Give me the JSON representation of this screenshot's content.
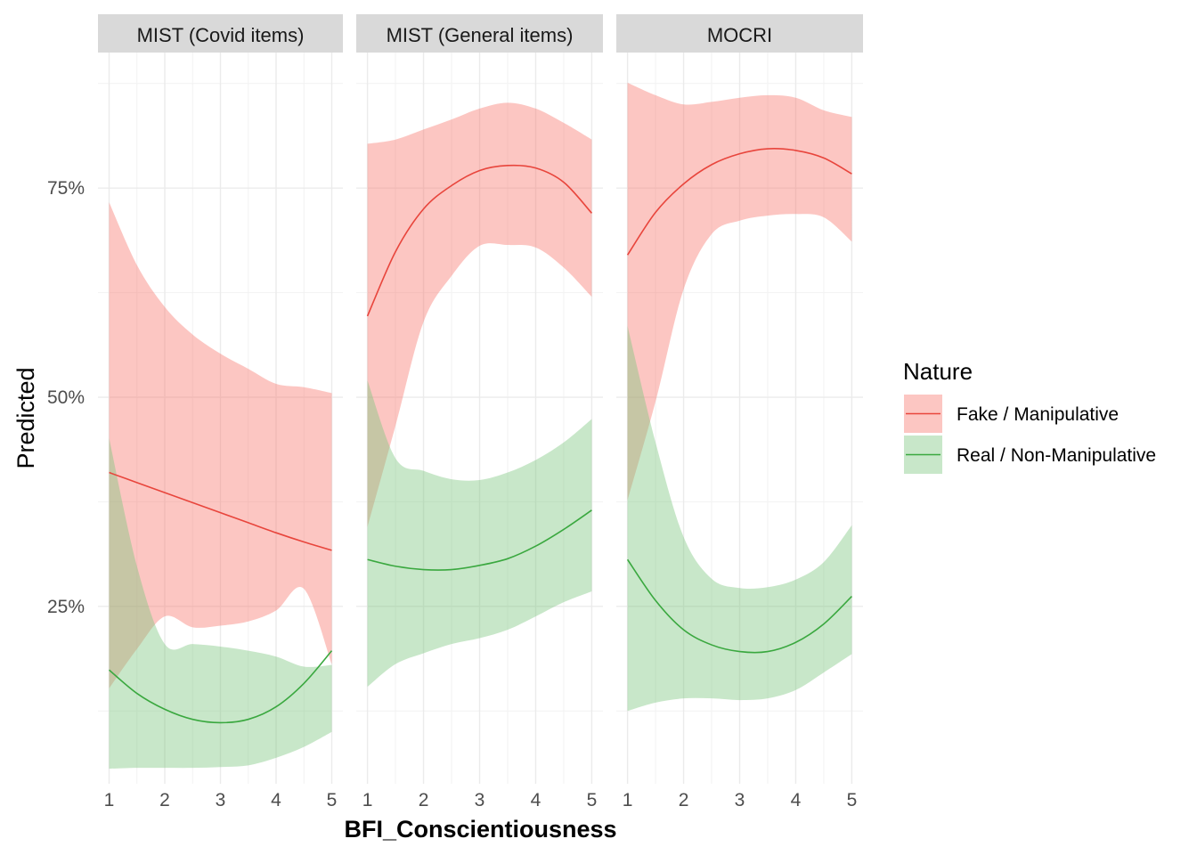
{
  "chart_data": {
    "type": "line",
    "xlabel": "BFI_Conscientiousness",
    "ylabel": "Predicted",
    "x_ticks": [
      1,
      2,
      3,
      4,
      5
    ],
    "y_ticks": [
      {
        "value": 0.25,
        "label": "25%"
      },
      {
        "value": 0.5,
        "label": "50%"
      },
      {
        "value": 0.75,
        "label": "75%"
      }
    ],
    "xlim": [
      0.8,
      5.2
    ],
    "ylim": [
      0.038,
      0.912
    ],
    "legend": {
      "title": "Nature",
      "position": "right",
      "items": [
        {
          "name": "Fake / Manipulative",
          "color": "#e8453c",
          "fill": "#f8766d"
        },
        {
          "name": "Real / Non-Manipulative",
          "color": "#3aa83f",
          "fill": "#7cc67f"
        }
      ]
    },
    "panels": [
      {
        "title": "MIST (Covid items)",
        "x": [
          1,
          1.5,
          2,
          2.5,
          3,
          3.5,
          4,
          4.5,
          5
        ],
        "series": [
          {
            "name": "Fake / Manipulative",
            "values": [
              0.41,
              0.398,
              0.386,
              0.374,
              0.362,
              0.35,
              0.338,
              0.327,
              0.317
            ],
            "lower": [
              0.152,
              0.199,
              0.238,
              0.225,
              0.227,
              0.232,
              0.245,
              0.271,
              0.181
            ],
            "upper": [
              0.733,
              0.658,
              0.608,
              0.575,
              0.552,
              0.534,
              0.516,
              0.512,
              0.505
            ]
          },
          {
            "name": "Real / Non-Manipulative",
            "values": [
              0.174,
              0.146,
              0.127,
              0.115,
              0.111,
              0.115,
              0.13,
              0.158,
              0.197
            ],
            "lower": [
              0.056,
              0.057,
              0.057,
              0.057,
              0.058,
              0.06,
              0.069,
              0.082,
              0.1
            ],
            "upper": [
              0.451,
              0.298,
              0.205,
              0.205,
              0.202,
              0.197,
              0.19,
              0.178,
              0.18
            ]
          }
        ]
      },
      {
        "title": "MIST (General items)",
        "x": [
          1,
          1.5,
          2,
          2.5,
          3,
          3.5,
          4,
          4.5,
          5
        ],
        "series": [
          {
            "name": "Fake / Manipulative",
            "values": [
              0.597,
              0.674,
              0.725,
              0.753,
              0.771,
              0.777,
              0.774,
              0.757,
              0.72
            ],
            "lower": [
              0.345,
              0.466,
              0.59,
              0.645,
              0.681,
              0.682,
              0.679,
              0.655,
              0.62
            ],
            "upper": [
              0.803,
              0.808,
              0.82,
              0.832,
              0.845,
              0.852,
              0.845,
              0.828,
              0.808
            ]
          },
          {
            "name": "Real / Non-Manipulative",
            "values": [
              0.306,
              0.298,
              0.294,
              0.294,
              0.299,
              0.307,
              0.322,
              0.342,
              0.365
            ],
            "lower": [
              0.154,
              0.181,
              0.194,
              0.205,
              0.212,
              0.222,
              0.238,
              0.255,
              0.268
            ],
            "upper": [
              0.52,
              0.427,
              0.412,
              0.402,
              0.401,
              0.41,
              0.425,
              0.446,
              0.474
            ]
          }
        ]
      },
      {
        "title": "MOCRI",
        "x": [
          1,
          1.5,
          2,
          2.5,
          3,
          3.5,
          4,
          4.5,
          5
        ],
        "series": [
          {
            "name": "Fake / Manipulative",
            "values": [
              0.67,
              0.721,
              0.755,
              0.778,
              0.791,
              0.797,
              0.795,
              0.786,
              0.767
            ],
            "lower": [
              0.377,
              0.495,
              0.629,
              0.695,
              0.711,
              0.717,
              0.719,
              0.715,
              0.686
            ],
            "upper": [
              0.876,
              0.861,
              0.85,
              0.853,
              0.858,
              0.861,
              0.858,
              0.843,
              0.835
            ]
          },
          {
            "name": "Real / Non-Manipulative",
            "values": [
              0.306,
              0.257,
              0.222,
              0.204,
              0.196,
              0.196,
              0.207,
              0.229,
              0.262
            ],
            "lower": [
              0.125,
              0.135,
              0.14,
              0.14,
              0.138,
              0.14,
              0.15,
              0.171,
              0.193
            ],
            "upper": [
              0.585,
              0.446,
              0.333,
              0.283,
              0.272,
              0.273,
              0.282,
              0.303,
              0.347
            ]
          }
        ]
      }
    ]
  }
}
